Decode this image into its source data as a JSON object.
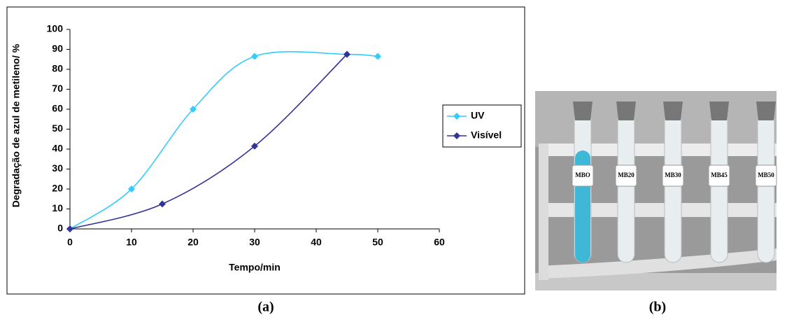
{
  "chart_data": {
    "type": "line",
    "x_label": "Tempo/min",
    "y_label": "Degradação de azul de metileno/ %",
    "xlim": [
      0,
      60
    ],
    "xticks": [
      0,
      10,
      20,
      30,
      40,
      50,
      60
    ],
    "ylim": [
      0,
      100
    ],
    "yticks": [
      0,
      10,
      20,
      30,
      40,
      50,
      60,
      70,
      80,
      90,
      100
    ],
    "grid": false,
    "legend": "right",
    "smooth": true,
    "series": [
      {
        "name": "UV",
        "color": "#33ccff",
        "x": [
          0,
          10,
          20,
          30,
          45,
          50
        ],
        "values": [
          0,
          20,
          60,
          86.5,
          87.5,
          86.5
        ]
      },
      {
        "name": "Visível",
        "color": "#333399",
        "x": [
          0,
          15,
          30,
          45
        ],
        "values": [
          0,
          12.5,
          41.5,
          87.5
        ]
      }
    ]
  },
  "photo": {
    "labels": [
      "MBO",
      "MB20",
      "MB30",
      "MB45",
      "MB50"
    ]
  },
  "captions": [
    "(a)",
    "(b)"
  ]
}
